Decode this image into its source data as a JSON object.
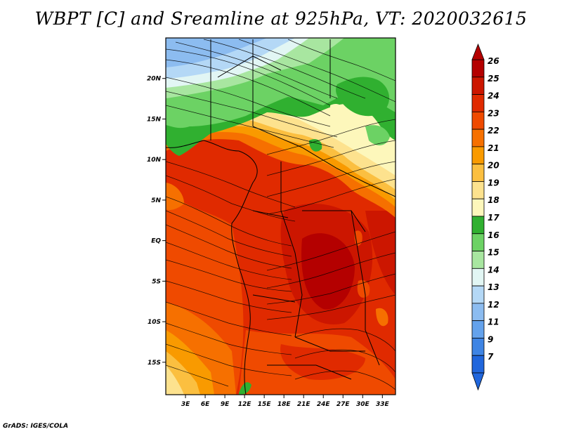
{
  "title": "WBPT [C] and Sreamline at 925hPa, VT: 2020032615",
  "credit": "GrADS: IGES/COLA",
  "map": {
    "lat_labels": [
      "20N",
      "15N",
      "10N",
      "5N",
      "EQ",
      "5S",
      "10S",
      "15S"
    ],
    "lon_labels": [
      "3E",
      "6E",
      "9E",
      "12E",
      "15E",
      "18E",
      "21E",
      "24E",
      "27E",
      "30E",
      "33E"
    ],
    "lon_min": 0,
    "lon_max": 35,
    "lat_min": -19,
    "lat_max": 25
  },
  "colorbar": {
    "labels": [
      "26",
      "25",
      "24",
      "23",
      "22",
      "21",
      "20",
      "19",
      "18",
      "17",
      "16",
      "15",
      "14",
      "13",
      "12",
      "11",
      "9",
      "7"
    ],
    "colors": [
      "#b40000",
      "#cc1600",
      "#e02a00",
      "#ef4a00",
      "#f67000",
      "#f99a00",
      "#fbbf40",
      "#fde28e",
      "#fdf7bb",
      "#30b030",
      "#6cd264",
      "#a8e6a0",
      "#e2f6f4",
      "#b4d8f6",
      "#8cbcf0",
      "#64a2ec",
      "#3e84e4",
      "#2066dc"
    ]
  }
}
